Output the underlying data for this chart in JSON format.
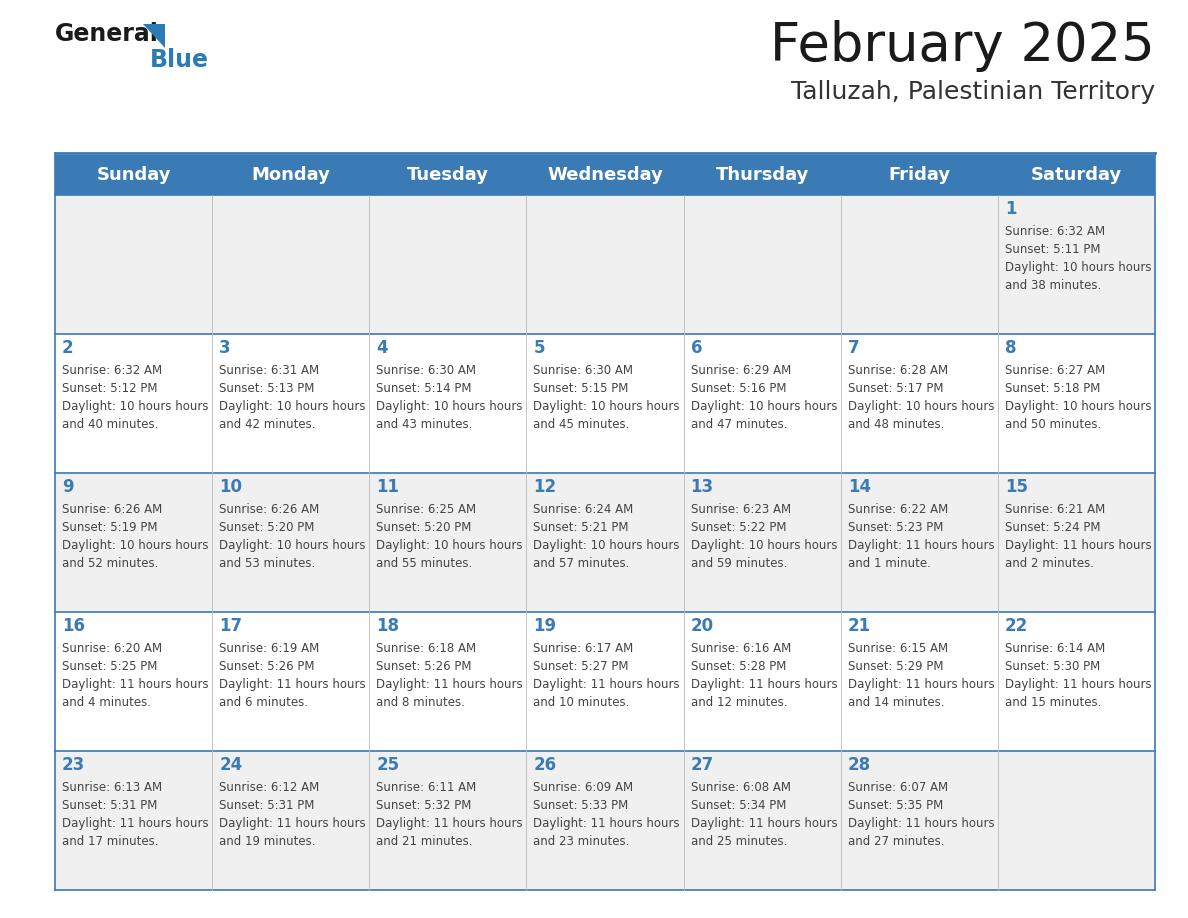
{
  "title": "February 2025",
  "subtitle": "Talluzah, Palestinian Territory",
  "header_bg_color": "#3a7ab5",
  "header_text_color": "#ffffff",
  "header_days": [
    "Sunday",
    "Monday",
    "Tuesday",
    "Wednesday",
    "Thursday",
    "Friday",
    "Saturday"
  ],
  "row_bg_even": "#f0f0f0",
  "row_bg_odd": "#ffffff",
  "cell_border_color": "#3a7ab5",
  "day_number_color": "#3a7ab5",
  "info_text_color": "#444444",
  "title_color": "#1a1a1a",
  "subtitle_color": "#333333",
  "blue_color": "#2b7bb5",
  "logo_general_color": "#1a1a1a",
  "calendar": [
    [
      null,
      null,
      null,
      null,
      null,
      null,
      {
        "day": 1,
        "sunrise": "6:32 AM",
        "sunset": "5:11 PM",
        "daylight": "10 hours and 38 minutes."
      }
    ],
    [
      {
        "day": 2,
        "sunrise": "6:32 AM",
        "sunset": "5:12 PM",
        "daylight": "10 hours and 40 minutes."
      },
      {
        "day": 3,
        "sunrise": "6:31 AM",
        "sunset": "5:13 PM",
        "daylight": "10 hours and 42 minutes."
      },
      {
        "day": 4,
        "sunrise": "6:30 AM",
        "sunset": "5:14 PM",
        "daylight": "10 hours and 43 minutes."
      },
      {
        "day": 5,
        "sunrise": "6:30 AM",
        "sunset": "5:15 PM",
        "daylight": "10 hours and 45 minutes."
      },
      {
        "day": 6,
        "sunrise": "6:29 AM",
        "sunset": "5:16 PM",
        "daylight": "10 hours and 47 minutes."
      },
      {
        "day": 7,
        "sunrise": "6:28 AM",
        "sunset": "5:17 PM",
        "daylight": "10 hours and 48 minutes."
      },
      {
        "day": 8,
        "sunrise": "6:27 AM",
        "sunset": "5:18 PM",
        "daylight": "10 hours and 50 minutes."
      }
    ],
    [
      {
        "day": 9,
        "sunrise": "6:26 AM",
        "sunset": "5:19 PM",
        "daylight": "10 hours and 52 minutes."
      },
      {
        "day": 10,
        "sunrise": "6:26 AM",
        "sunset": "5:20 PM",
        "daylight": "10 hours and 53 minutes."
      },
      {
        "day": 11,
        "sunrise": "6:25 AM",
        "sunset": "5:20 PM",
        "daylight": "10 hours and 55 minutes."
      },
      {
        "day": 12,
        "sunrise": "6:24 AM",
        "sunset": "5:21 PM",
        "daylight": "10 hours and 57 minutes."
      },
      {
        "day": 13,
        "sunrise": "6:23 AM",
        "sunset": "5:22 PM",
        "daylight": "10 hours and 59 minutes."
      },
      {
        "day": 14,
        "sunrise": "6:22 AM",
        "sunset": "5:23 PM",
        "daylight": "11 hours and 1 minute."
      },
      {
        "day": 15,
        "sunrise": "6:21 AM",
        "sunset": "5:24 PM",
        "daylight": "11 hours and 2 minutes."
      }
    ],
    [
      {
        "day": 16,
        "sunrise": "6:20 AM",
        "sunset": "5:25 PM",
        "daylight": "11 hours and 4 minutes."
      },
      {
        "day": 17,
        "sunrise": "6:19 AM",
        "sunset": "5:26 PM",
        "daylight": "11 hours and 6 minutes."
      },
      {
        "day": 18,
        "sunrise": "6:18 AM",
        "sunset": "5:26 PM",
        "daylight": "11 hours and 8 minutes."
      },
      {
        "day": 19,
        "sunrise": "6:17 AM",
        "sunset": "5:27 PM",
        "daylight": "11 hours and 10 minutes."
      },
      {
        "day": 20,
        "sunrise": "6:16 AM",
        "sunset": "5:28 PM",
        "daylight": "11 hours and 12 minutes."
      },
      {
        "day": 21,
        "sunrise": "6:15 AM",
        "sunset": "5:29 PM",
        "daylight": "11 hours and 14 minutes."
      },
      {
        "day": 22,
        "sunrise": "6:14 AM",
        "sunset": "5:30 PM",
        "daylight": "11 hours and 15 minutes."
      }
    ],
    [
      {
        "day": 23,
        "sunrise": "6:13 AM",
        "sunset": "5:31 PM",
        "daylight": "11 hours and 17 minutes."
      },
      {
        "day": 24,
        "sunrise": "6:12 AM",
        "sunset": "5:31 PM",
        "daylight": "11 hours and 19 minutes."
      },
      {
        "day": 25,
        "sunrise": "6:11 AM",
        "sunset": "5:32 PM",
        "daylight": "11 hours and 21 minutes."
      },
      {
        "day": 26,
        "sunrise": "6:09 AM",
        "sunset": "5:33 PM",
        "daylight": "11 hours and 23 minutes."
      },
      {
        "day": 27,
        "sunrise": "6:08 AM",
        "sunset": "5:34 PM",
        "daylight": "11 hours and 25 minutes."
      },
      {
        "day": 28,
        "sunrise": "6:07 AM",
        "sunset": "5:35 PM",
        "daylight": "11 hours and 27 minutes."
      },
      null
    ]
  ],
  "fig_width": 11.88,
  "fig_height": 9.18
}
